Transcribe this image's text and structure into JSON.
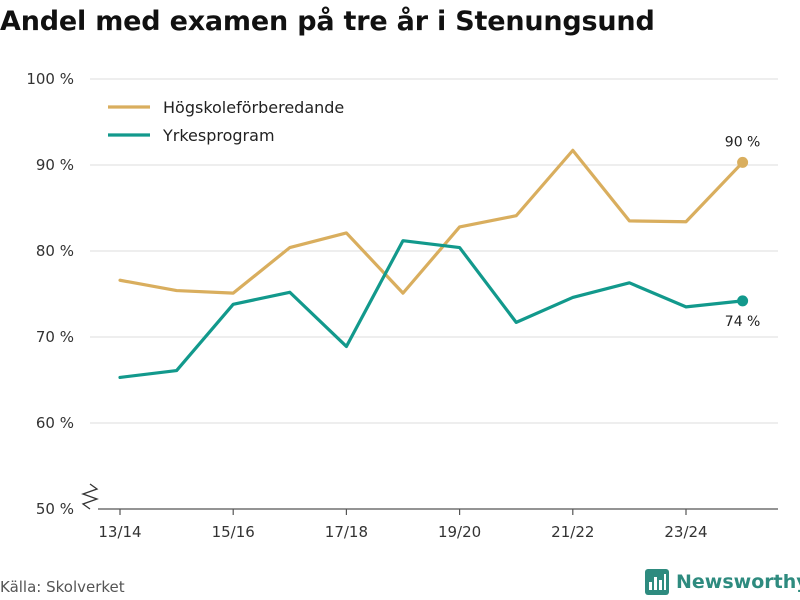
{
  "colors": {
    "series1": "#d9ae5e",
    "series2": "#12998c",
    "grid": "#dcdcdc",
    "axis": "#555555",
    "brand": "#2e8b7f"
  },
  "source": "Källa: Skolverket",
  "brand": {
    "name": "Newsworthy",
    "icon": "newsworthy-logo-icon"
  },
  "chart_data": {
    "type": "line",
    "title": "Andel med examen på tre år i Stenungsund",
    "xlabel": "",
    "ylabel": "",
    "ylim": [
      50,
      100
    ],
    "yticks": [
      50,
      60,
      70,
      80,
      90,
      100
    ],
    "ytick_labels": [
      "50 %",
      "60 %",
      "70 %",
      "80 %",
      "90 %",
      "100 %"
    ],
    "axis_break": true,
    "grid": true,
    "legend": "top-left",
    "x": [
      "13/14",
      "14/15",
      "15/16",
      "16/17",
      "17/18",
      "18/19",
      "19/20",
      "20/21",
      "21/22",
      "22/23",
      "23/24",
      "24/25"
    ],
    "xtick_labels": [
      "13/14",
      "15/16",
      "17/18",
      "19/20",
      "21/22",
      "23/24"
    ],
    "xtick_indices": [
      0,
      2,
      4,
      6,
      8,
      10
    ],
    "series": [
      {
        "name": "Högskoleförberedande",
        "color": "#d9ae5e",
        "values": [
          76.6,
          75.4,
          75.1,
          80.4,
          82.1,
          75.1,
          82.8,
          84.1,
          91.7,
          83.5,
          83.4,
          90.3
        ],
        "end_label": "90 %",
        "end_label_pos": "above"
      },
      {
        "name": "Yrkesprogram",
        "color": "#12998c",
        "values": [
          65.3,
          66.1,
          73.8,
          75.2,
          68.9,
          81.2,
          80.4,
          71.7,
          74.6,
          76.3,
          73.5,
          74.2
        ],
        "end_label": "74 %",
        "end_label_pos": "below"
      }
    ]
  }
}
